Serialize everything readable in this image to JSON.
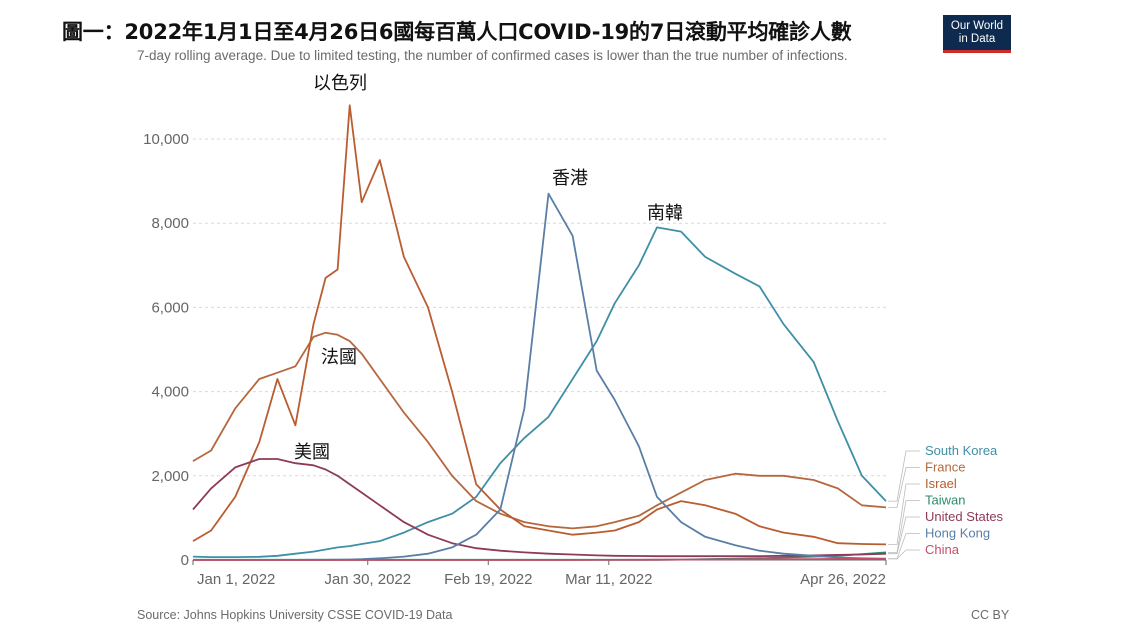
{
  "title": "圖一：2022年1月1日至4月26日6國每百萬人口COVID-19的7日滾動平均確診人數",
  "subtitle": "7-day rolling average. Due to limited testing, the number of confirmed cases is lower than the true number of infections.",
  "logo": {
    "line1": "Our World",
    "line2": "in Data"
  },
  "source": "Source: Johns Hopkins University CSSE COVID-19 Data",
  "license": "CC BY",
  "colors": {
    "south_korea": "#3f8fa6",
    "france": "#b5673e",
    "israel": "#b95d31",
    "taiwan": "#2e8b6e",
    "united_states": "#8e3a5a",
    "hong_kong": "#5b7ea6",
    "china": "#c24f6a",
    "grid": "#d9d9d9",
    "axis": "#666666"
  },
  "chart_data": {
    "type": "line",
    "x": [
      "2022-01-01",
      "2022-01-04",
      "2022-01-08",
      "2022-01-12",
      "2022-01-15",
      "2022-01-18",
      "2022-01-21",
      "2022-01-23",
      "2022-01-25",
      "2022-01-27",
      "2022-01-29",
      "2022-02-01",
      "2022-02-05",
      "2022-02-09",
      "2022-02-13",
      "2022-02-17",
      "2022-02-21",
      "2022-02-25",
      "2022-03-01",
      "2022-03-05",
      "2022-03-09",
      "2022-03-12",
      "2022-03-16",
      "2022-03-19",
      "2022-03-23",
      "2022-03-27",
      "2022-04-01",
      "2022-04-05",
      "2022-04-09",
      "2022-04-14",
      "2022-04-18",
      "2022-04-22",
      "2022-04-26"
    ],
    "x_ticks": [
      "Jan 1, 2022",
      "Jan 30, 2022",
      "Feb 19, 2022",
      "Mar 11, 2022",
      "Apr 26, 2022"
    ],
    "y_ticks": [
      "0",
      "2,000",
      "4,000",
      "6,000",
      "8,000",
      "10,000"
    ],
    "ylim": [
      0,
      11000
    ],
    "grid": true,
    "legend_position": "right",
    "series": [
      {
        "name": "South Korea",
        "color_key": "south_korea",
        "label": "南韓",
        "values": [
          80,
          70,
          70,
          75,
          100,
          150,
          200,
          250,
          300,
          330,
          380,
          450,
          650,
          900,
          1100,
          1500,
          2300,
          2900,
          3400,
          4300,
          5200,
          6100,
          7000,
          7900,
          7800,
          7200,
          6800,
          6500,
          5600,
          4700,
          3300,
          2000,
          1400
        ]
      },
      {
        "name": "France",
        "color_key": "france",
        "label": "法國",
        "values": [
          2350,
          2600,
          3600,
          4300,
          4450,
          4600,
          5300,
          5400,
          5350,
          5200,
          4900,
          4300,
          3500,
          2800,
          2000,
          1400,
          1100,
          900,
          800,
          750,
          800,
          900,
          1050,
          1300,
          1600,
          1900,
          2050,
          2000,
          2000,
          1900,
          1700,
          1300,
          1250
        ]
      },
      {
        "name": "Israel",
        "color_key": "israel",
        "label": "以色列",
        "values": [
          450,
          700,
          1500,
          2800,
          4300,
          3200,
          5600,
          6700,
          6900,
          10800,
          8500,
          9500,
          7200,
          6000,
          4000,
          1800,
          1200,
          800,
          700,
          600,
          650,
          700,
          900,
          1200,
          1400,
          1300,
          1100,
          800,
          650,
          550,
          400,
          380,
          370
        ]
      },
      {
        "name": "Taiwan",
        "color_key": "taiwan",
        "values": [
          5,
          5,
          5,
          5,
          5,
          5,
          5,
          5,
          5,
          5,
          5,
          5,
          5,
          5,
          5,
          5,
          5,
          5,
          5,
          5,
          5,
          5,
          5,
          5,
          10,
          20,
          30,
          40,
          60,
          80,
          100,
          140,
          180
        ]
      },
      {
        "name": "United States",
        "color_key": "united_states",
        "label": "美國",
        "values": [
          1200,
          1700,
          2200,
          2400,
          2400,
          2300,
          2250,
          2150,
          2000,
          1800,
          1600,
          1300,
          900,
          600,
          400,
          280,
          220,
          180,
          150,
          130,
          110,
          100,
          95,
          90,
          90,
          90,
          90,
          90,
          100,
          110,
          120,
          130,
          150
        ]
      },
      {
        "name": "Hong Kong",
        "color_key": "hong_kong",
        "label": "香港",
        "values": [
          2,
          2,
          2,
          2,
          2,
          3,
          4,
          5,
          8,
          12,
          20,
          40,
          80,
          150,
          300,
          600,
          1200,
          3600,
          8700,
          7700,
          4500,
          3800,
          2700,
          1500,
          900,
          550,
          350,
          220,
          150,
          100,
          60,
          40,
          30
        ]
      },
      {
        "name": "China",
        "color_key": "china",
        "values": [
          1,
          1,
          1,
          1,
          1,
          1,
          1,
          1,
          1,
          1,
          1,
          1,
          1,
          1,
          1,
          1,
          1,
          1,
          1,
          1,
          2,
          3,
          5,
          8,
          10,
          12,
          15,
          18,
          20,
          22,
          25,
          25,
          25
        ]
      }
    ]
  }
}
